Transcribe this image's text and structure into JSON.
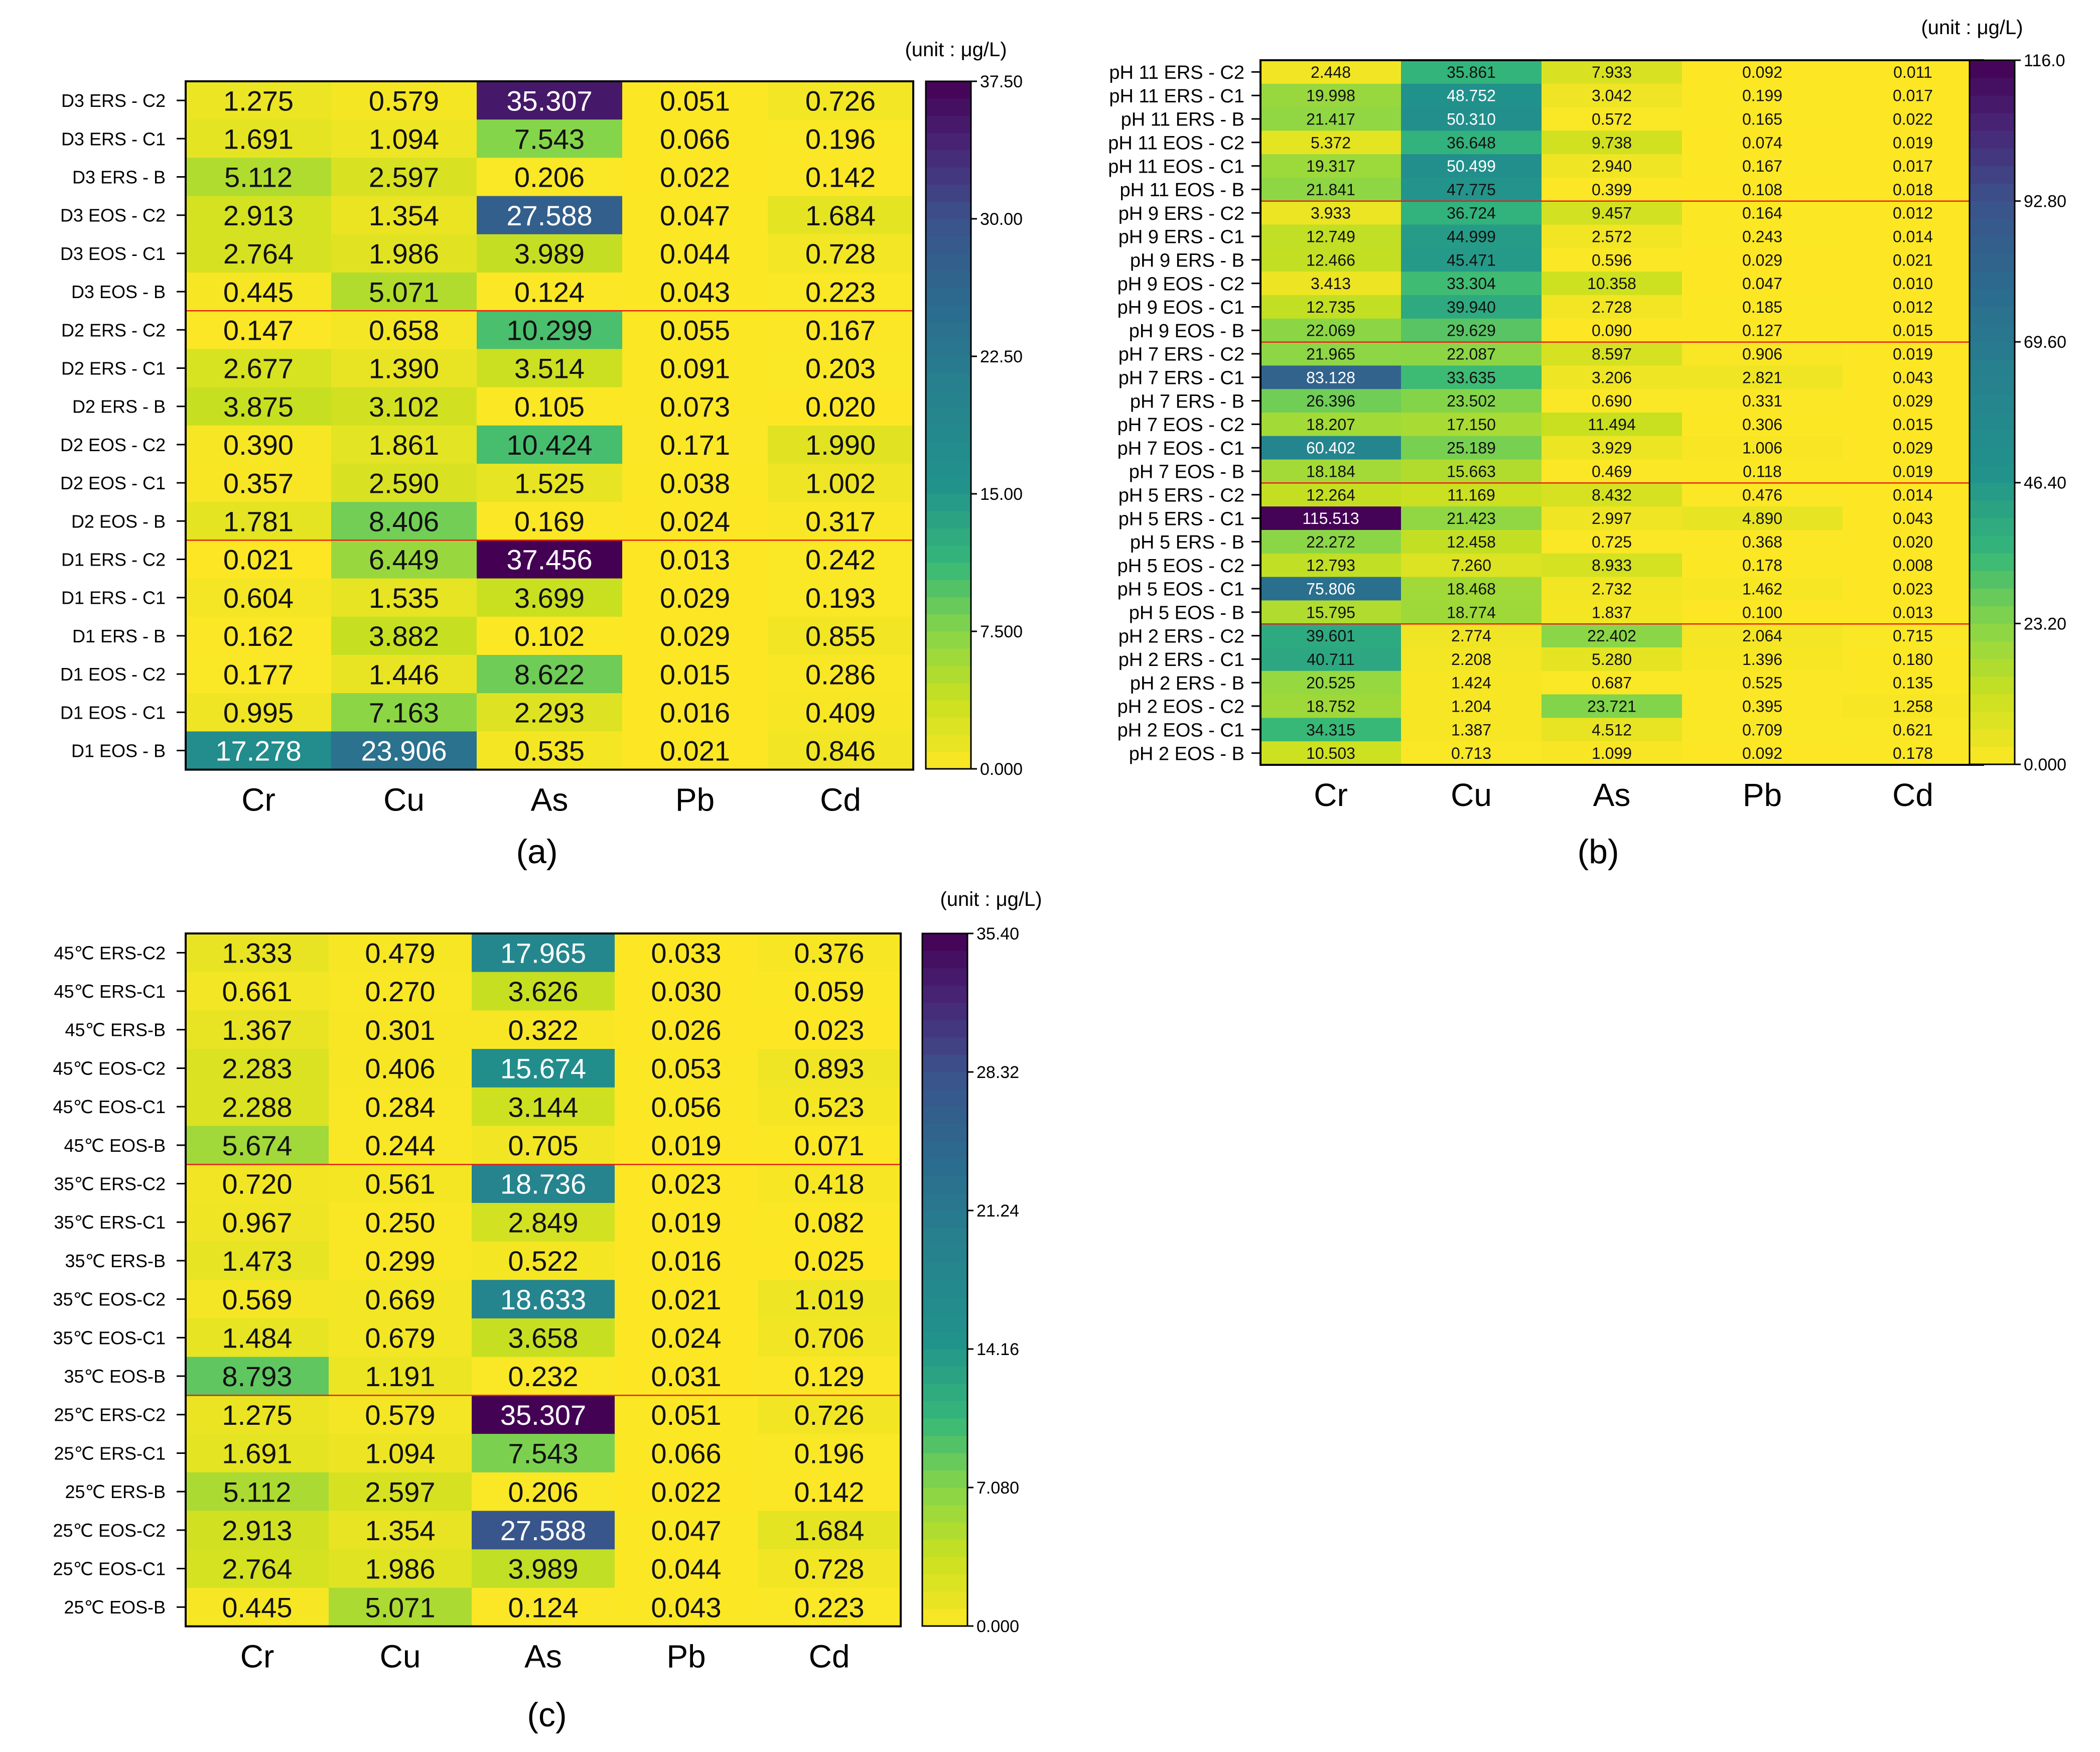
{
  "chart_data": [
    {
      "type": "heatmap",
      "panel_label": "(a)",
      "unit_label": "(unit : μg/L)",
      "columns": [
        "Cr",
        "Cu",
        "As",
        "Pb",
        "Cd"
      ],
      "rows": [
        "D3 ERS - C2",
        "D3 ERS - C1",
        "D3 ERS - B",
        "D3 EOS - C2",
        "D3 EOS - C1",
        "D3 EOS - B",
        "D2 ERS - C2",
        "D2 ERS - C1",
        "D2 ERS - B",
        "D2 EOS - C2",
        "D2 EOS - C1",
        "D2 EOS - B",
        "D1 ERS - C2",
        "D1 ERS - C1",
        "D1 ERS - B",
        "D1 EOS - C2",
        "D1 EOS - C1",
        "D1 EOS - B"
      ],
      "values": [
        [
          "1.275",
          "0.579",
          "35.307",
          "0.051",
          "0.726"
        ],
        [
          "1.691",
          "1.094",
          "7.543",
          "0.066",
          "0.196"
        ],
        [
          "5.112",
          "2.597",
          "0.206",
          "0.022",
          "0.142"
        ],
        [
          "2.913",
          "1.354",
          "27.588",
          "0.047",
          "1.684"
        ],
        [
          "2.764",
          "1.986",
          "3.989",
          "0.044",
          "0.728"
        ],
        [
          "0.445",
          "5.071",
          "0.124",
          "0.043",
          "0.223"
        ],
        [
          "0.147",
          "0.658",
          "10.299",
          "0.055",
          "0.167"
        ],
        [
          "2.677",
          "1.390",
          "3.514",
          "0.091",
          "0.203"
        ],
        [
          "3.875",
          "3.102",
          "0.105",
          "0.073",
          "0.020"
        ],
        [
          "0.390",
          "1.861",
          "10.424",
          "0.171",
          "1.990"
        ],
        [
          "0.357",
          "2.590",
          "1.525",
          "0.038",
          "1.002"
        ],
        [
          "1.781",
          "8.406",
          "0.169",
          "0.024",
          "0.317"
        ],
        [
          "0.021",
          "6.449",
          "37.456",
          "0.013",
          "0.242"
        ],
        [
          "0.604",
          "1.535",
          "3.699",
          "0.029",
          "0.193"
        ],
        [
          "0.162",
          "3.882",
          "0.102",
          "0.029",
          "0.855"
        ],
        [
          "0.177",
          "1.446",
          "8.622",
          "0.015",
          "0.286"
        ],
        [
          "0.995",
          "7.163",
          "2.293",
          "0.016",
          "0.409"
        ],
        [
          "17.278",
          "23.906",
          "0.535",
          "0.021",
          "0.846"
        ]
      ],
      "colorbar": {
        "min": 0,
        "max": 37.5,
        "ticks": [
          "37.50",
          "30.00",
          "22.50",
          "15.00",
          "7.500",
          "0.000"
        ]
      },
      "group_separators_after_rows": [
        5,
        11
      ]
    },
    {
      "type": "heatmap",
      "panel_label": "(b)",
      "unit_label": "(unit : μg/L)",
      "columns": [
        "Cr",
        "Cu",
        "As",
        "Pb",
        "Cd"
      ],
      "rows": [
        "pH 11 ERS - C2",
        "pH 11 ERS - C1",
        "pH 11 ERS - B",
        "pH 11 EOS - C2",
        "pH 11 EOS - C1",
        "pH 11 EOS - B",
        "pH 9 ERS - C2",
        "pH 9 ERS - C1",
        "pH 9 ERS - B",
        "pH 9 EOS - C2",
        "pH 9 EOS - C1",
        "pH 9 EOS - B",
        "pH 7 ERS - C2",
        "pH 7 ERS - C1",
        "pH 7 ERS - B",
        "pH 7 EOS - C2",
        "pH 7 EOS - C1",
        "pH 7 EOS - B",
        "pH 5 ERS - C2",
        "pH 5 ERS - C1",
        "pH 5 ERS - B",
        "pH 5 EOS - C2",
        "pH 5 EOS - C1",
        "pH 5 EOS - B",
        "pH 2 ERS - C2",
        "pH 2 ERS - C1",
        "pH 2 ERS - B",
        "pH 2 EOS - C2",
        "pH 2 EOS - C1",
        "pH 2 EOS - B"
      ],
      "values": [
        [
          "2.448",
          "35.861",
          "7.933",
          "0.092",
          "0.011"
        ],
        [
          "19.998",
          "48.752",
          "3.042",
          "0.199",
          "0.017"
        ],
        [
          "21.417",
          "50.310",
          "0.572",
          "0.165",
          "0.022"
        ],
        [
          "5.372",
          "36.648",
          "9.738",
          "0.074",
          "0.019"
        ],
        [
          "19.317",
          "50.499",
          "2.940",
          "0.167",
          "0.017"
        ],
        [
          "21.841",
          "47.775",
          "0.399",
          "0.108",
          "0.018"
        ],
        [
          "3.933",
          "36.724",
          "9.457",
          "0.164",
          "0.012"
        ],
        [
          "12.749",
          "44.999",
          "2.572",
          "0.243",
          "0.014"
        ],
        [
          "12.466",
          "45.471",
          "0.596",
          "0.029",
          "0.021"
        ],
        [
          "3.413",
          "33.304",
          "10.358",
          "0.047",
          "0.010"
        ],
        [
          "12.735",
          "39.940",
          "2.728",
          "0.185",
          "0.012"
        ],
        [
          "22.069",
          "29.629",
          "0.090",
          "0.127",
          "0.015"
        ],
        [
          "21.965",
          "22.087",
          "8.597",
          "0.906",
          "0.019"
        ],
        [
          "83.128",
          "33.635",
          "3.206",
          "2.821",
          "0.043"
        ],
        [
          "26.396",
          "23.502",
          "0.690",
          "0.331",
          "0.029"
        ],
        [
          "18.207",
          "17.150",
          "11.494",
          "0.306",
          "0.015"
        ],
        [
          "60.402",
          "25.189",
          "3.929",
          "1.006",
          "0.029"
        ],
        [
          "18.184",
          "15.663",
          "0.469",
          "0.118",
          "0.019"
        ],
        [
          "12.264",
          "11.169",
          "8.432",
          "0.476",
          "0.014"
        ],
        [
          "115.513",
          "21.423",
          "2.997",
          "4.890",
          "0.043"
        ],
        [
          "22.272",
          "12.458",
          "0.725",
          "0.368",
          "0.020"
        ],
        [
          "12.793",
          "7.260",
          "8.933",
          "0.178",
          "0.008"
        ],
        [
          "75.806",
          "18.468",
          "2.732",
          "1.462",
          "0.023"
        ],
        [
          "15.795",
          "18.774",
          "1.837",
          "0.100",
          "0.013"
        ],
        [
          "39.601",
          "2.774",
          "22.402",
          "2.064",
          "0.715"
        ],
        [
          "40.711",
          "2.208",
          "5.280",
          "1.396",
          "0.180"
        ],
        [
          "20.525",
          "1.424",
          "0.687",
          "0.525",
          "0.135"
        ],
        [
          "18.752",
          "1.204",
          "23.721",
          "0.395",
          "1.258"
        ],
        [
          "34.315",
          "1.387",
          "4.512",
          "0.709",
          "0.621"
        ],
        [
          "10.503",
          "0.713",
          "1.099",
          "0.092",
          "0.178"
        ]
      ],
      "colorbar": {
        "min": 0,
        "max": 116,
        "ticks": [
          "116.0",
          "92.80",
          "69.60",
          "46.40",
          "23.20",
          "0.000"
        ]
      },
      "group_separators_after_rows": [
        5,
        11,
        17,
        23
      ]
    },
    {
      "type": "heatmap",
      "panel_label": "(c)",
      "unit_label": "(unit : μg/L)",
      "columns": [
        "Cr",
        "Cu",
        "As",
        "Pb",
        "Cd"
      ],
      "rows": [
        "45℃ ERS-C2",
        "45℃ ERS-C1",
        "45℃ ERS-B",
        "45℃ EOS-C2",
        "45℃ EOS-C1",
        "45℃ EOS-B",
        "35℃ ERS-C2",
        "35℃ ERS-C1",
        "35℃ ERS-B",
        "35℃ EOS-C2",
        "35℃ EOS-C1",
        "35℃ EOS-B",
        "25℃ ERS-C2",
        "25℃ ERS-C1",
        "25℃ ERS-B",
        "25℃ EOS-C2",
        "25℃ EOS-C1",
        "25℃ EOS-B"
      ],
      "values": [
        [
          "1.333",
          "0.479",
          "17.965",
          "0.033",
          "0.376"
        ],
        [
          "0.661",
          "0.270",
          "3.626",
          "0.030",
          "0.059"
        ],
        [
          "1.367",
          "0.301",
          "0.322",
          "0.026",
          "0.023"
        ],
        [
          "2.283",
          "0.406",
          "15.674",
          "0.053",
          "0.893"
        ],
        [
          "2.288",
          "0.284",
          "3.144",
          "0.056",
          "0.523"
        ],
        [
          "5.674",
          "0.244",
          "0.705",
          "0.019",
          "0.071"
        ],
        [
          "0.720",
          "0.561",
          "18.736",
          "0.023",
          "0.418"
        ],
        [
          "0.967",
          "0.250",
          "2.849",
          "0.019",
          "0.082"
        ],
        [
          "1.473",
          "0.299",
          "0.522",
          "0.016",
          "0.025"
        ],
        [
          "0.569",
          "0.669",
          "18.633",
          "0.021",
          "1.019"
        ],
        [
          "1.484",
          "0.679",
          "3.658",
          "0.024",
          "0.706"
        ],
        [
          "8.793",
          "1.191",
          "0.232",
          "0.031",
          "0.129"
        ],
        [
          "1.275",
          "0.579",
          "35.307",
          "0.051",
          "0.726"
        ],
        [
          "1.691",
          "1.094",
          "7.543",
          "0.066",
          "0.196"
        ],
        [
          "5.112",
          "2.597",
          "0.206",
          "0.022",
          "0.142"
        ],
        [
          "2.913",
          "1.354",
          "27.588",
          "0.047",
          "1.684"
        ],
        [
          "2.764",
          "1.986",
          "3.989",
          "0.044",
          "0.728"
        ],
        [
          "0.445",
          "5.071",
          "0.124",
          "0.043",
          "0.223"
        ]
      ],
      "colorbar": {
        "min": 0,
        "max": 35.4,
        "ticks": [
          "35.40",
          "28.32",
          "21.24",
          "14.16",
          "7.080",
          "0.000"
        ]
      },
      "group_separators_after_rows": [
        5,
        11
      ]
    }
  ]
}
